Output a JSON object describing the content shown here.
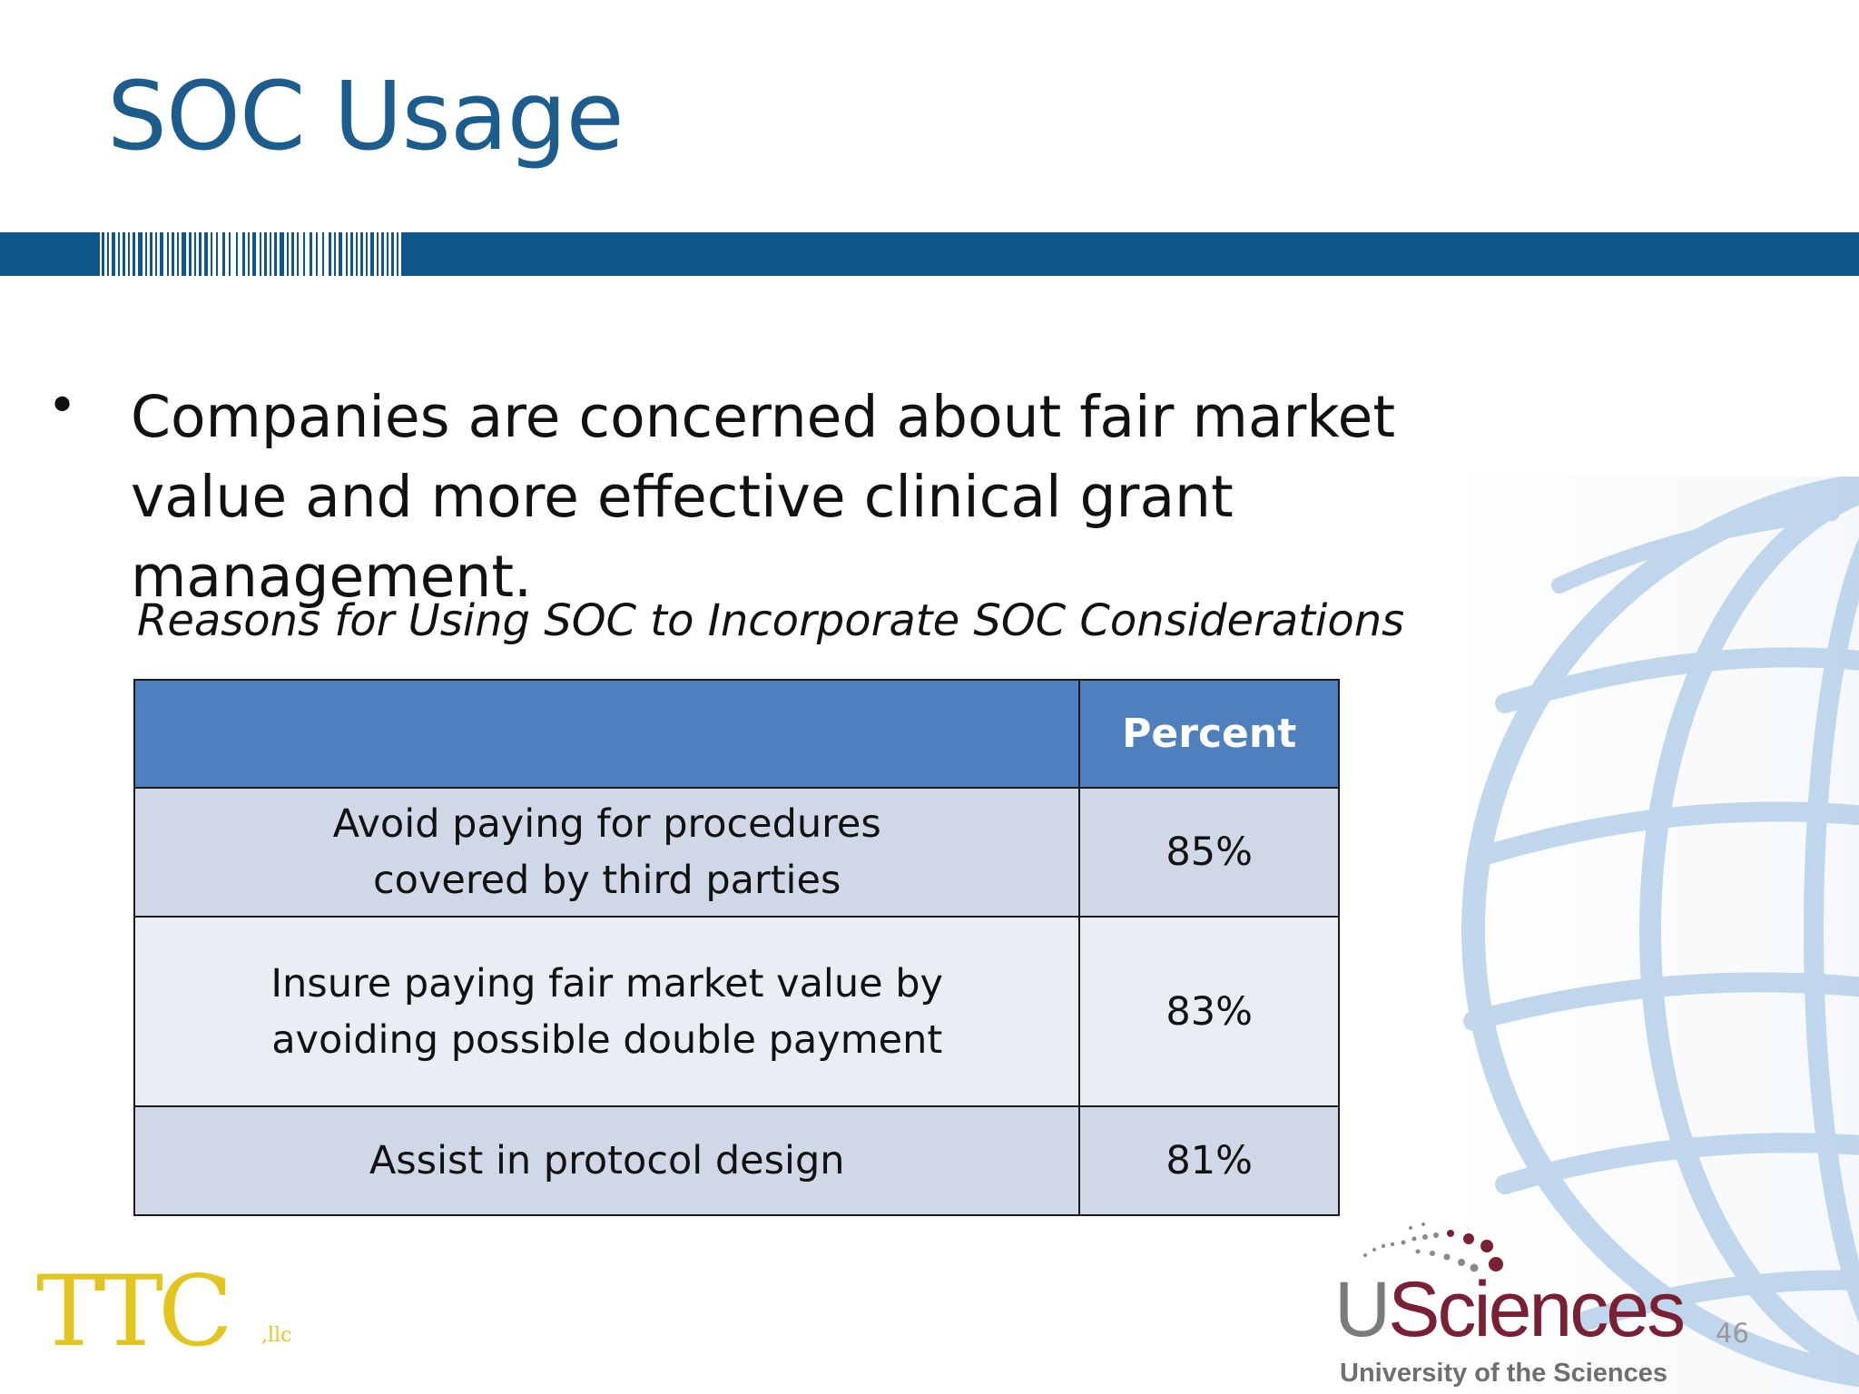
{
  "slide": {
    "title": "SOC Usage",
    "bullet": "Companies are concerned about fair market value and more effective clinical grant management.",
    "table_caption": "Reasons for Using SOC to Incorporate SOC Considerations",
    "page_number": "46"
  },
  "table": {
    "header": {
      "reason": "",
      "percent": "Percent"
    },
    "rows": [
      {
        "reason_line1": "Avoid paying for procedures",
        "reason_line2": "covered by third parties",
        "percent": "85%"
      },
      {
        "reason_line1": "Insure paying fair market value by",
        "reason_line2": "avoiding possible double payment",
        "percent": "83%"
      },
      {
        "reason_line1": "Assist in protocol design",
        "reason_line2": "",
        "percent": "81%"
      }
    ]
  },
  "logos": {
    "ttc_main": "TTC",
    "ttc_suffix": ",llc",
    "usciences_u": "U",
    "usciences_rest": "Sciences",
    "usciences_subtitle": "University of the Sciences"
  },
  "colors": {
    "title_blue": "#1d5d8e",
    "band_blue": "#11568a",
    "table_header": "#4f80bd",
    "row_dark": "#d0d8e8",
    "row_light": "#e9edf4",
    "ttc_gold": "#e2c520",
    "usciences_maroon": "#7a2035"
  },
  "icons": {
    "globe": "globe-watermark-icon",
    "barcode": "barcode-stripes",
    "bullet": "bullet-dot"
  }
}
